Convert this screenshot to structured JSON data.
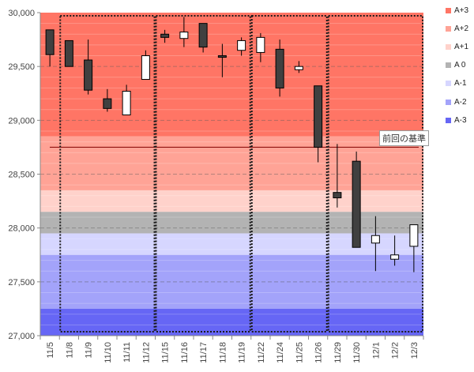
{
  "chart_data": {
    "type": "candlestick",
    "ylim": [
      27000,
      30000
    ],
    "y_ticks": [
      "27,000",
      "27,500",
      "28,000",
      "28,500",
      "29,000",
      "29,500",
      "30,000"
    ],
    "y_tick_values": [
      27000,
      27500,
      28000,
      28500,
      29000,
      29500,
      30000
    ],
    "categories": [
      "11/5",
      "11/8",
      "11/9",
      "11/10",
      "11/11",
      "11/12",
      "11/15",
      "11/16",
      "11/17",
      "11/18",
      "11/19",
      "11/22",
      "11/24",
      "11/25",
      "11/26",
      "11/29",
      "11/30",
      "12/1",
      "12/2",
      "12/3"
    ],
    "candles": [
      {
        "open": 29840,
        "close": 29610,
        "high": 29840,
        "low": 29500
      },
      {
        "open": 29740,
        "close": 29500,
        "high": 29740,
        "low": 29500
      },
      {
        "open": 29560,
        "close": 29280,
        "high": 29750,
        "low": 29240
      },
      {
        "open": 29200,
        "close": 29110,
        "high": 29290,
        "low": 29080
      },
      {
        "open": 29050,
        "close": 29270,
        "high": 29330,
        "low": 29050
      },
      {
        "open": 29380,
        "close": 29600,
        "high": 29650,
        "low": 29380
      },
      {
        "open": 29800,
        "close": 29770,
        "high": 29840,
        "low": 29720
      },
      {
        "open": 29760,
        "close": 29820,
        "high": 29960,
        "low": 29680
      },
      {
        "open": 29900,
        "close": 29680,
        "high": 29900,
        "low": 29630
      },
      {
        "open": 29600,
        "close": 29590,
        "high": 29710,
        "low": 29400
      },
      {
        "open": 29650,
        "close": 29740,
        "high": 29770,
        "low": 29600
      },
      {
        "open": 29630,
        "close": 29770,
        "high": 29810,
        "low": 29540
      },
      {
        "open": 29660,
        "close": 29300,
        "high": 29750,
        "low": 29220
      },
      {
        "open": 29470,
        "close": 29500,
        "high": 29550,
        "low": 29440
      },
      {
        "open": 29320,
        "close": 28750,
        "high": 29320,
        "low": 28610
      },
      {
        "open": 28330,
        "close": 28280,
        "high": 28780,
        "low": 28190
      },
      {
        "open": 28620,
        "close": 27820,
        "high": 28710,
        "low": 27820
      },
      {
        "open": 27860,
        "close": 27930,
        "high": 28110,
        "low": 27600
      },
      {
        "open": 27710,
        "close": 27750,
        "high": 27930,
        "low": 27650
      },
      {
        "open": 27830,
        "close": 28030,
        "high": 28030,
        "low": 27590
      }
    ],
    "bands": [
      {
        "name": "A+3",
        "from": 28850,
        "to": 30000,
        "color": "#ff7565"
      },
      {
        "name": "A+2",
        "from": 28350,
        "to": 28850,
        "color": "#ffa396"
      },
      {
        "name": "A+1",
        "from": 28150,
        "to": 28350,
        "color": "#ffd2cb"
      },
      {
        "name": "A 0",
        "from": 27950,
        "to": 28150,
        "color": "#b3b3b3"
      },
      {
        "name": "A-1",
        "from": 27750,
        "to": 27950,
        "color": "#d6d6ff"
      },
      {
        "name": "A-2",
        "from": 27250,
        "to": 27750,
        "color": "#a3a3fa"
      },
      {
        "name": "A-3",
        "from": 27000,
        "to": 27250,
        "color": "#6666f5"
      }
    ],
    "reference_line": {
      "value": 28750,
      "label": "前回の基準",
      "color": "#800000"
    },
    "week_groups": [
      [
        1,
        5
      ],
      [
        6,
        10
      ],
      [
        11,
        14
      ],
      [
        15,
        19
      ]
    ],
    "legend_placement": "right"
  }
}
